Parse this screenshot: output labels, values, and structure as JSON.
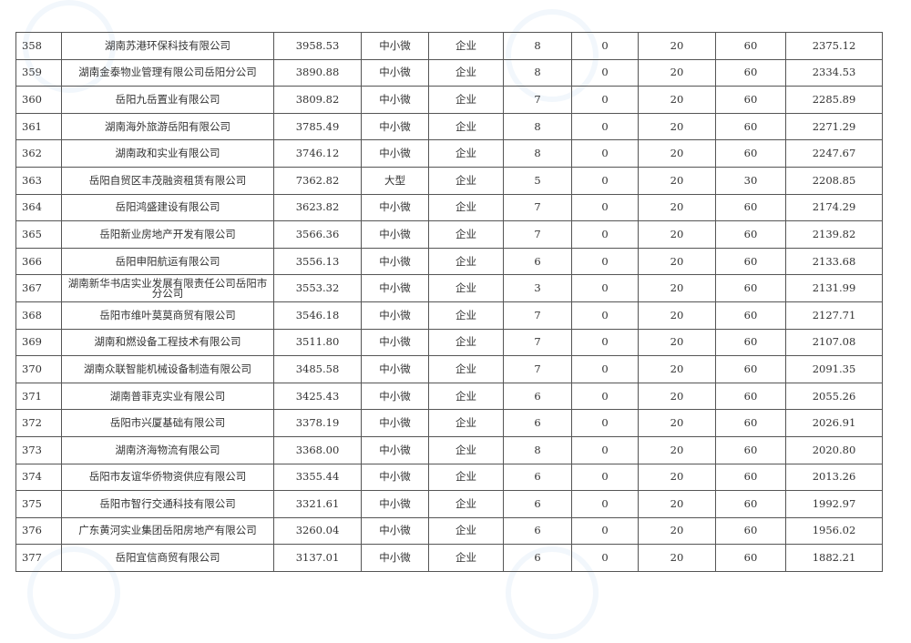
{
  "watermark": "湖南社保",
  "rows": [
    [
      "358",
      "湖南苏港环保科技有限公司",
      "3958.53",
      "中小微",
      "企业",
      "8",
      "0",
      "20",
      "60",
      "2375.12"
    ],
    [
      "359",
      "湖南金泰物业管理有限公司岳阳分公司",
      "3890.88",
      "中小微",
      "企业",
      "8",
      "0",
      "20",
      "60",
      "2334.53"
    ],
    [
      "360",
      "岳阳九岳置业有限公司",
      "3809.82",
      "中小微",
      "企业",
      "7",
      "0",
      "20",
      "60",
      "2285.89"
    ],
    [
      "361",
      "湖南海外旅游岳阳有限公司",
      "3785.49",
      "中小微",
      "企业",
      "8",
      "0",
      "20",
      "60",
      "2271.29"
    ],
    [
      "362",
      "湖南政和实业有限公司",
      "3746.12",
      "中小微",
      "企业",
      "8",
      "0",
      "20",
      "60",
      "2247.67"
    ],
    [
      "363",
      "岳阳自贸区丰茂融资租赁有限公司",
      "7362.82",
      "大型",
      "企业",
      "5",
      "0",
      "20",
      "30",
      "2208.85"
    ],
    [
      "364",
      "岳阳鸿盛建设有限公司",
      "3623.82",
      "中小微",
      "企业",
      "7",
      "0",
      "20",
      "60",
      "2174.29"
    ],
    [
      "365",
      "岳阳新业房地产开发有限公司",
      "3566.36",
      "中小微",
      "企业",
      "7",
      "0",
      "20",
      "60",
      "2139.82"
    ],
    [
      "366",
      "岳阳申阳航运有限公司",
      "3556.13",
      "中小微",
      "企业",
      "6",
      "0",
      "20",
      "60",
      "2133.68"
    ],
    [
      "367",
      "湖南新华书店实业发展有限责任公司岳阳市分公司",
      "3553.32",
      "中小微",
      "企业",
      "3",
      "0",
      "20",
      "60",
      "2131.99"
    ],
    [
      "368",
      "岳阳市维叶莫莫商贸有限公司",
      "3546.18",
      "中小微",
      "企业",
      "7",
      "0",
      "20",
      "60",
      "2127.71"
    ],
    [
      "369",
      "湖南和燃设备工程技术有限公司",
      "3511.80",
      "中小微",
      "企业",
      "7",
      "0",
      "20",
      "60",
      "2107.08"
    ],
    [
      "370",
      "湖南众联智能机械设备制造有限公司",
      "3485.58",
      "中小微",
      "企业",
      "7",
      "0",
      "20",
      "60",
      "2091.35"
    ],
    [
      "371",
      "湖南普菲克实业有限公司",
      "3425.43",
      "中小微",
      "企业",
      "6",
      "0",
      "20",
      "60",
      "2055.26"
    ],
    [
      "372",
      "岳阳市兴厦基础有限公司",
      "3378.19",
      "中小微",
      "企业",
      "6",
      "0",
      "20",
      "60",
      "2026.91"
    ],
    [
      "373",
      "湖南济海物流有限公司",
      "3368.00",
      "中小微",
      "企业",
      "8",
      "0",
      "20",
      "60",
      "2020.80"
    ],
    [
      "374",
      "岳阳市友谊华侨物资供应有限公司",
      "3355.44",
      "中小微",
      "企业",
      "6",
      "0",
      "20",
      "60",
      "2013.26"
    ],
    [
      "375",
      "岳阳市智行交通科技有限公司",
      "3321.61",
      "中小微",
      "企业",
      "6",
      "0",
      "20",
      "60",
      "1992.97"
    ],
    [
      "376",
      "广东黄河实业集团岳阳房地产有限公司",
      "3260.04",
      "中小微",
      "企业",
      "6",
      "0",
      "20",
      "60",
      "1956.02"
    ],
    [
      "377",
      "岳阳宜信商贸有限公司",
      "3137.01",
      "中小微",
      "企业",
      "6",
      "0",
      "20",
      "60",
      "1882.21"
    ]
  ]
}
